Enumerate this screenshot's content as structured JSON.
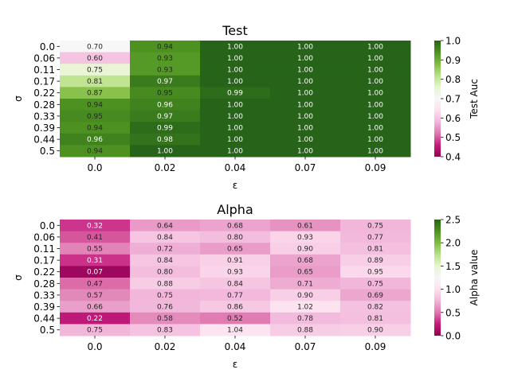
{
  "chart_data": [
    {
      "type": "heatmap",
      "title": "Test",
      "xlabel": "ε",
      "ylabel": "σ",
      "x_categories": [
        "0.0",
        "0.02",
        "0.04",
        "0.07",
        "0.09"
      ],
      "y_categories": [
        "0.0",
        "0.06",
        "0.11",
        "0.17",
        "0.22",
        "0.28",
        "0.33",
        "0.39",
        "0.44",
        "0.5"
      ],
      "values": [
        [
          0.7,
          0.94,
          1.0,
          1.0,
          1.0
        ],
        [
          0.6,
          0.93,
          1.0,
          1.0,
          1.0
        ],
        [
          0.75,
          0.93,
          1.0,
          1.0,
          1.0
        ],
        [
          0.81,
          0.97,
          1.0,
          1.0,
          1.0
        ],
        [
          0.87,
          0.95,
          0.99,
          1.0,
          1.0
        ],
        [
          0.94,
          0.96,
          1.0,
          1.0,
          1.0
        ],
        [
          0.95,
          0.97,
          1.0,
          1.0,
          1.0
        ],
        [
          0.94,
          0.99,
          1.0,
          1.0,
          1.0
        ],
        [
          0.96,
          0.98,
          1.0,
          1.0,
          1.0
        ],
        [
          0.94,
          1.0,
          1.0,
          1.0,
          1.0
        ]
      ],
      "colorbar_label": "Test Auc",
      "vmin": 0.4,
      "vmax": 1.0,
      "colorbar_ticks": [
        0.4,
        0.5,
        0.6,
        0.7,
        0.8,
        0.9,
        1.0
      ],
      "colormap": "PiYG",
      "value_format": 2
    },
    {
      "type": "heatmap",
      "title": "Alpha",
      "xlabel": "ε",
      "ylabel": "σ",
      "x_categories": [
        "0.0",
        "0.02",
        "0.04",
        "0.07",
        "0.09"
      ],
      "y_categories": [
        "0.0",
        "0.06",
        "0.11",
        "0.17",
        "0.22",
        "0.28",
        "0.33",
        "0.39",
        "0.44",
        "0.5"
      ],
      "values": [
        [
          0.32,
          0.64,
          0.68,
          0.61,
          0.75
        ],
        [
          0.41,
          0.84,
          0.8,
          0.93,
          0.77
        ],
        [
          0.55,
          0.72,
          0.65,
          0.9,
          0.81
        ],
        [
          0.31,
          0.84,
          0.91,
          0.68,
          0.89
        ],
        [
          0.07,
          0.8,
          0.93,
          0.65,
          0.95
        ],
        [
          0.47,
          0.88,
          0.84,
          0.71,
          0.75
        ],
        [
          0.57,
          0.75,
          0.77,
          0.9,
          0.69
        ],
        [
          0.66,
          0.76,
          0.86,
          1.02,
          0.82
        ],
        [
          0.22,
          0.58,
          0.52,
          0.78,
          0.81
        ],
        [
          0.75,
          0.83,
          1.04,
          0.88,
          0.9
        ]
      ],
      "colorbar_label": "Alpha value",
      "vmin": 0.0,
      "vmax": 2.5,
      "colorbar_ticks": [
        0.0,
        0.5,
        1.0,
        1.5,
        2.0,
        2.5
      ],
      "colormap": "PiYG",
      "value_format": 2
    }
  ]
}
